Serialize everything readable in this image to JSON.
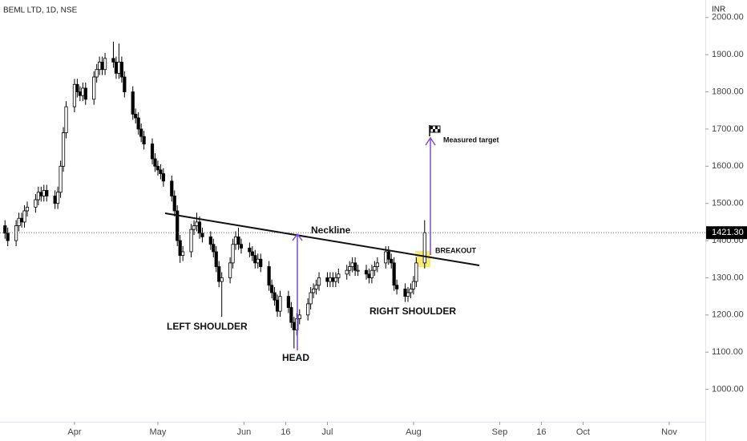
{
  "chart_data": {
    "type": "candlestick",
    "title": "BEML LTD, 1D, NSE",
    "currency": "INR",
    "x": [
      -25,
      -24,
      -21,
      -20,
      -19,
      -18,
      -17,
      -14,
      -13,
      -12,
      -11,
      -10,
      -7,
      -6,
      -5,
      -4,
      -3,
      0,
      1,
      2,
      3,
      4,
      7,
      8,
      9,
      10,
      11,
      14,
      15,
      16,
      17,
      18,
      21,
      22,
      23,
      24,
      25,
      28,
      29,
      30,
      31,
      32,
      35,
      36,
      37,
      38,
      39,
      42,
      43,
      44,
      45,
      46,
      49,
      50,
      51,
      52,
      53,
      56,
      57,
      58,
      59,
      60,
      63,
      64,
      65,
      66,
      67,
      70,
      71,
      72,
      73,
      74,
      77,
      78,
      79,
      80,
      81,
      84,
      85,
      86,
      87,
      88,
      91,
      92,
      93,
      94,
      95,
      98,
      99,
      100,
      101,
      102,
      105,
      106,
      107,
      108,
      109,
      112,
      113,
      114,
      115,
      116,
      119,
      120,
      121,
      122,
      123,
      126
    ],
    "open": [
      1440,
      1420,
      1400,
      1440,
      1460,
      1450,
      1480,
      1490,
      1510,
      1530,
      1520,
      1535,
      1520,
      1500,
      1530,
      1600,
      1690,
      1760,
      1820,
      1800,
      1790,
      1810,
      1780,
      1840,
      1860,
      1880,
      1860,
      1890,
      1880,
      1850,
      1880,
      1840,
      1800,
      1740,
      1730,
      1700,
      1680,
      1660,
      1620,
      1600,
      1590,
      1580,
      1560,
      1520,
      1480,
      1400,
      1360,
      1370,
      1430,
      1440,
      1450,
      1420,
      1410,
      1390,
      1370,
      1330,
      1290,
      1300,
      1340,
      1390,
      1410,
      1390,
      1380,
      1370,
      1360,
      1340,
      1350,
      1330,
      1280,
      1260,
      1240,
      1210,
      1250,
      1220,
      1180,
      1160,
      1190,
      1200,
      1230,
      1260,
      1270,
      1280,
      1300,
      1290,
      1300,
      1290,
      1300,
      1310,
      1320,
      1330,
      1340,
      1320,
      1320,
      1310,
      1300,
      1320,
      1330,
      1340,
      1370,
      1350,
      1340,
      1280,
      1270,
      1250,
      1260,
      1270,
      1290,
      1340
    ],
    "high": [
      1455,
      1435,
      1455,
      1475,
      1475,
      1495,
      1505,
      1525,
      1545,
      1545,
      1550,
      1550,
      1535,
      1545,
      1615,
      1705,
      1775,
      1835,
      1835,
      1815,
      1825,
      1825,
      1855,
      1875,
      1895,
      1895,
      1905,
      1935,
      1895,
      1930,
      1895,
      1855,
      1815,
      1755,
      1745,
      1715,
      1695,
      1675,
      1635,
      1615,
      1605,
      1595,
      1575,
      1535,
      1495,
      1415,
      1385,
      1445,
      1455,
      1475,
      1465,
      1435,
      1425,
      1405,
      1385,
      1345,
      1315,
      1355,
      1405,
      1425,
      1435,
      1405,
      1395,
      1385,
      1375,
      1365,
      1365,
      1345,
      1295,
      1275,
      1255,
      1265,
      1265,
      1235,
      1195,
      1205,
      1215,
      1245,
      1275,
      1285,
      1295,
      1315,
      1315,
      1315,
      1315,
      1315,
      1325,
      1335,
      1345,
      1355,
      1355,
      1335,
      1335,
      1325,
      1335,
      1345,
      1355,
      1385,
      1385,
      1365,
      1355,
      1295,
      1285,
      1275,
      1285,
      1305,
      1355,
      1455
    ],
    "low": [
      1405,
      1385,
      1385,
      1425,
      1435,
      1435,
      1465,
      1475,
      1495,
      1505,
      1505,
      1505,
      1485,
      1485,
      1515,
      1585,
      1675,
      1745,
      1785,
      1775,
      1775,
      1765,
      1765,
      1825,
      1845,
      1845,
      1845,
      1865,
      1835,
      1835,
      1825,
      1785,
      1725,
      1715,
      1685,
      1665,
      1645,
      1605,
      1585,
      1575,
      1565,
      1545,
      1505,
      1465,
      1385,
      1340,
      1345,
      1355,
      1415,
      1425,
      1405,
      1395,
      1375,
      1355,
      1315,
      1275,
      1195,
      1285,
      1325,
      1375,
      1375,
      1365,
      1355,
      1345,
      1325,
      1325,
      1315,
      1265,
      1245,
      1225,
      1195,
      1195,
      1205,
      1165,
      1110,
      1145,
      1175,
      1185,
      1215,
      1245,
      1255,
      1265,
      1275,
      1275,
      1275,
      1275,
      1285,
      1295,
      1305,
      1315,
      1305,
      1305,
      1295,
      1285,
      1285,
      1305,
      1315,
      1325,
      1335,
      1325,
      1265,
      1255,
      1235,
      1235,
      1245,
      1255,
      1275,
      1325
    ],
    "close": [
      1420,
      1400,
      1440,
      1460,
      1450,
      1480,
      1490,
      1510,
      1530,
      1520,
      1535,
      1520,
      1500,
      1530,
      1600,
      1690,
      1760,
      1820,
      1800,
      1790,
      1810,
      1780,
      1840,
      1860,
      1880,
      1860,
      1890,
      1880,
      1850,
      1880,
      1840,
      1800,
      1740,
      1730,
      1700,
      1680,
      1660,
      1620,
      1600,
      1590,
      1580,
      1560,
      1520,
      1480,
      1400,
      1360,
      1370,
      1430,
      1440,
      1450,
      1420,
      1410,
      1390,
      1370,
      1330,
      1290,
      1300,
      1340,
      1390,
      1410,
      1390,
      1380,
      1370,
      1360,
      1340,
      1350,
      1330,
      1280,
      1260,
      1240,
      1210,
      1250,
      1220,
      1180,
      1160,
      1190,
      1200,
      1230,
      1260,
      1270,
      1280,
      1300,
      1290,
      1300,
      1290,
      1300,
      1310,
      1320,
      1330,
      1340,
      1320,
      1320,
      1310,
      1300,
      1320,
      1330,
      1340,
      1370,
      1350,
      1340,
      1280,
      1270,
      1250,
      1260,
      1270,
      1290,
      1340,
      1421.3
    ],
    "last_close_label": "1421.30",
    "xlim": [
      -26.8,
      227
    ],
    "xticks": [
      {
        "value": 0,
        "label": "Apr"
      },
      {
        "value": 30,
        "label": "May"
      },
      {
        "value": 61,
        "label": "Jun"
      },
      {
        "value": 76,
        "label": "16"
      },
      {
        "value": 91,
        "label": "Jul"
      },
      {
        "value": 122,
        "label": "Aug"
      },
      {
        "value": 153,
        "label": "Sep"
      },
      {
        "value": 168,
        "label": "16"
      },
      {
        "value": 183,
        "label": "Oct"
      },
      {
        "value": 214,
        "label": "Nov"
      }
    ],
    "ylim": [
      915,
      2047
    ],
    "yticks": [
      {
        "value": 1000,
        "label": "1000.00"
      },
      {
        "value": 1100,
        "label": "1100.00"
      },
      {
        "value": 1200,
        "label": "1200.00"
      },
      {
        "value": 1300,
        "label": "1300.00"
      },
      {
        "value": 1400,
        "label": "1400.00"
      },
      {
        "value": 1500,
        "label": "1500.00"
      },
      {
        "value": 1600,
        "label": "1600.00"
      },
      {
        "value": 1700,
        "label": "1700.00"
      },
      {
        "value": 1800,
        "label": "1800.00"
      },
      {
        "value": 1900,
        "label": "1900.00"
      },
      {
        "value": 2000,
        "label": "2000.00"
      }
    ],
    "up_color": "#ffffff",
    "down_color": "#000000",
    "annotations": {
      "neckline": "Neckline",
      "left_shoulder": "LEFT SHOULDER",
      "head": "HEAD",
      "right_shoulder": "RIGHT SHOULDER",
      "breakout": "BREAKOUT",
      "target": "Measured target"
    }
  }
}
